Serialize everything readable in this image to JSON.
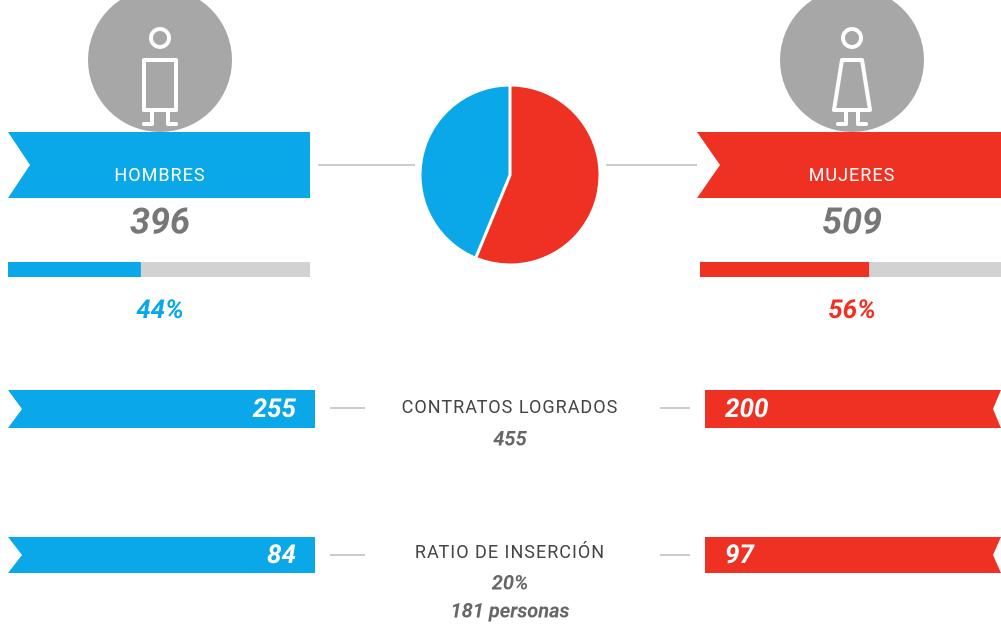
{
  "hombres": {
    "label": "HOMBRES",
    "count": 396,
    "percent": {
      "value": 44,
      "label": "44%"
    },
    "color": "#0aa8e8"
  },
  "mujeres": {
    "label": "MUJERES",
    "count": 509,
    "percent": {
      "value": 56,
      "label": "56%"
    },
    "color": "#ef3124"
  },
  "contratos": {
    "label": "CONTRATOS LOGRADOS",
    "hombres": 255,
    "mujeres": 200,
    "total": 455
  },
  "ratio": {
    "label": "RATIO DE INSERCIÓN",
    "hombres": 84,
    "mujeres": 97,
    "percent": "20%",
    "personas": "181 personas"
  }
}
